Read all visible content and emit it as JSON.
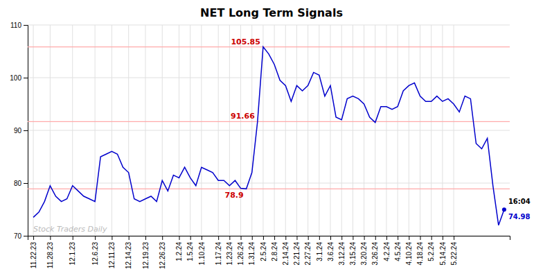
{
  "chart_data": {
    "type": "line",
    "title": "NET Long Term Signals",
    "categories": [
      "11.22.23",
      null,
      null,
      "11.28.23",
      null,
      null,
      null,
      "12.1.23",
      null,
      null,
      null,
      "12.6.23",
      null,
      null,
      "12.11.23",
      null,
      null,
      "12.14.23",
      null,
      null,
      "12.19.23",
      null,
      null,
      "12.26.23",
      null,
      null,
      "1.2.24",
      null,
      "1.5.24",
      null,
      "1.10.24",
      null,
      null,
      "1.17.24",
      null,
      "1.23.24",
      null,
      "1.26.24",
      null,
      "1.31.24",
      null,
      "2.5.24",
      null,
      "2.8.24",
      null,
      "2.14.24",
      null,
      "2.21.24",
      null,
      "2.27.24",
      null,
      "3.1.24",
      null,
      "3.6.24",
      null,
      "3.12.24",
      null,
      "3.15.24",
      null,
      "3.20.24",
      null,
      "3.26.24",
      null,
      "4.2.24",
      null,
      "4.5.24",
      null,
      "4.10.24",
      null,
      "4.18.24",
      null,
      "5.2.24",
      null,
      "5.14.24",
      null,
      "5.22.24",
      null,
      null,
      null,
      null,
      null,
      null,
      null,
      null,
      null
    ],
    "values": [
      73.5,
      74.5,
      76.5,
      79.5,
      77.5,
      76.5,
      77.0,
      79.5,
      78.5,
      77.5,
      77.0,
      76.5,
      85.0,
      85.5,
      86.0,
      85.5,
      83.0,
      82.0,
      77.0,
      76.5,
      77.0,
      77.5,
      76.5,
      80.5,
      78.5,
      81.5,
      81.0,
      83.0,
      81.0,
      79.5,
      83.0,
      82.5,
      82.0,
      80.5,
      80.5,
      79.5,
      80.5,
      79.0,
      78.9,
      82.0,
      91.66,
      105.85,
      104.5,
      102.5,
      99.5,
      98.5,
      95.5,
      98.5,
      97.5,
      98.5,
      101.0,
      100.5,
      96.5,
      98.5,
      92.5,
      92.0,
      96.0,
      96.5,
      96.0,
      95.0,
      92.5,
      91.5,
      94.5,
      94.5,
      94.0,
      94.5,
      97.5,
      98.5,
      99.0,
      96.5,
      95.5,
      95.5,
      96.5,
      95.5,
      96.0,
      95.0,
      93.5,
      96.5,
      96.0,
      87.5,
      86.5,
      88.5,
      79.5,
      72.0,
      74.98
    ],
    "color": "#0000cc",
    "ylim": [
      70,
      110
    ],
    "yticks": [
      70,
      80,
      90,
      100,
      110
    ],
    "grid": true,
    "reference_lines": {
      "values": [
        105.85,
        91.66,
        78.9
      ],
      "color": "#ffaaaa"
    },
    "annotations": [
      {
        "text": "105.85",
        "y": 105.85,
        "color": "#cc0000"
      },
      {
        "text": "91.66",
        "y": 91.66,
        "color": "#cc0000"
      },
      {
        "text": "78.9",
        "y": 78.9,
        "color": "#cc0000"
      }
    ],
    "end_labels": [
      {
        "text": "16:04",
        "color": "#000000"
      },
      {
        "text": "74.98",
        "y": 74.98,
        "color": "#0000cc"
      }
    ],
    "watermark": "Stock Traders Daily"
  }
}
